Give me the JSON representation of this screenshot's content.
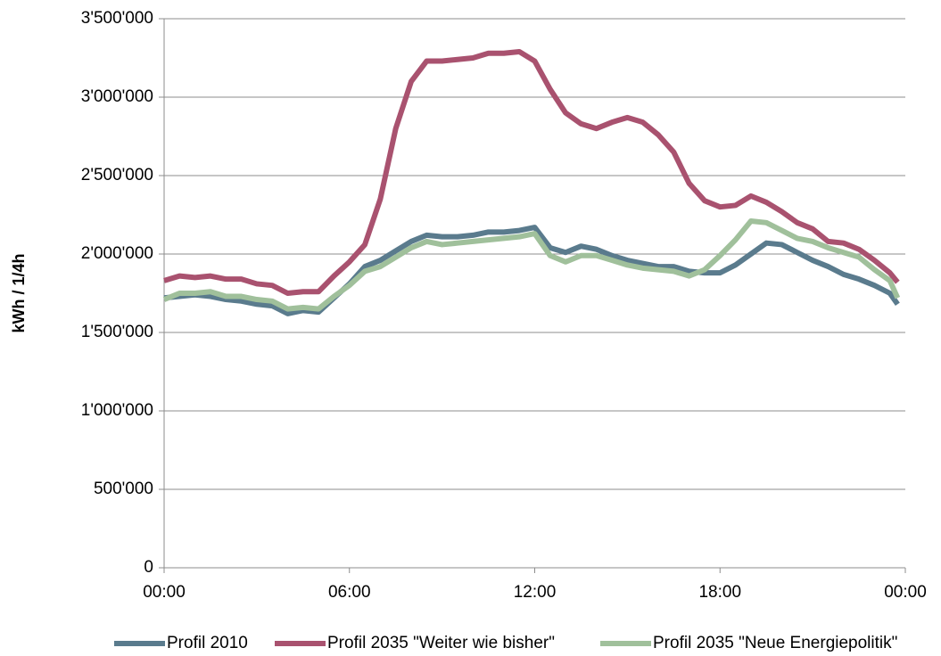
{
  "chart_data": {
    "type": "line",
    "y_label": "kWh / 1/4h",
    "x": [
      0,
      0.5,
      1,
      1.5,
      2,
      2.5,
      3,
      3.5,
      4,
      4.5,
      5,
      5.5,
      6,
      6.5,
      7,
      7.5,
      8,
      8.5,
      9,
      9.5,
      10,
      10.5,
      11,
      11.5,
      12,
      12.5,
      13,
      13.5,
      14,
      14.5,
      15,
      15.5,
      16,
      16.5,
      17,
      17.5,
      18,
      18.5,
      19,
      19.5,
      20,
      20.5,
      21,
      21.5,
      22,
      22.5,
      23,
      23.5,
      23.75
    ],
    "series": [
      {
        "name": "Profil 2010",
        "color": "#5a7b8d",
        "values": [
          1720000,
          1730000,
          1740000,
          1730000,
          1710000,
          1700000,
          1680000,
          1670000,
          1620000,
          1640000,
          1630000,
          1720000,
          1810000,
          1920000,
          1960000,
          2020000,
          2080000,
          2120000,
          2110000,
          2110000,
          2120000,
          2140000,
          2140000,
          2150000,
          2170000,
          2040000,
          2010000,
          2050000,
          2030000,
          1990000,
          1960000,
          1940000,
          1920000,
          1920000,
          1890000,
          1880000,
          1880000,
          1930000,
          2000000,
          2070000,
          2060000,
          2010000,
          1960000,
          1920000,
          1870000,
          1840000,
          1800000,
          1750000,
          1680000
        ]
      },
      {
        "name": "Profil 2035 \"Weiter wie bisher\"",
        "color": "#a9526f",
        "values": [
          1830000,
          1860000,
          1850000,
          1860000,
          1840000,
          1840000,
          1810000,
          1800000,
          1750000,
          1760000,
          1760000,
          1860000,
          1950000,
          2060000,
          2350000,
          2800000,
          3100000,
          3230000,
          3230000,
          3240000,
          3250000,
          3280000,
          3280000,
          3290000,
          3230000,
          3050000,
          2900000,
          2830000,
          2800000,
          2840000,
          2870000,
          2840000,
          2760000,
          2650000,
          2450000,
          2340000,
          2300000,
          2310000,
          2370000,
          2330000,
          2270000,
          2200000,
          2160000,
          2080000,
          2070000,
          2030000,
          1960000,
          1880000,
          1820000
        ]
      },
      {
        "name": "Profil 2035 \"Neue Energiepolitik\"",
        "color": "#a0c09b",
        "values": [
          1710000,
          1750000,
          1750000,
          1760000,
          1730000,
          1730000,
          1710000,
          1700000,
          1650000,
          1660000,
          1650000,
          1730000,
          1800000,
          1890000,
          1920000,
          1980000,
          2040000,
          2080000,
          2060000,
          2070000,
          2080000,
          2090000,
          2100000,
          2110000,
          2130000,
          1990000,
          1950000,
          1990000,
          1990000,
          1960000,
          1930000,
          1910000,
          1900000,
          1890000,
          1860000,
          1900000,
          1990000,
          2090000,
          2210000,
          2200000,
          2150000,
          2100000,
          2080000,
          2040000,
          2010000,
          1980000,
          1900000,
          1830000,
          1720000
        ]
      }
    ],
    "xlim": [
      0,
      24
    ],
    "xticks": [
      {
        "value": 0,
        "label": "00:00"
      },
      {
        "value": 6,
        "label": "06:00"
      },
      {
        "value": 12,
        "label": "12:00"
      },
      {
        "value": 18,
        "label": "18:00"
      },
      {
        "value": 24,
        "label": "00:00"
      }
    ],
    "ylim": [
      0,
      3500000
    ],
    "yticks": [
      0,
      {
        "value": 500000,
        "label": "500'000"
      },
      {
        "value": 1000000,
        "label": "1'000'000"
      },
      {
        "value": 1500000,
        "label": "1'500'000"
      },
      {
        "value": 2000000,
        "label": "2'000'000"
      },
      {
        "value": 2500000,
        "label": "2'500'000"
      },
      {
        "value": 3000000,
        "label": "3'000'000"
      },
      {
        "value": 3500000,
        "label": "3'500'000"
      }
    ],
    "grid": true,
    "legend": "bottom"
  }
}
